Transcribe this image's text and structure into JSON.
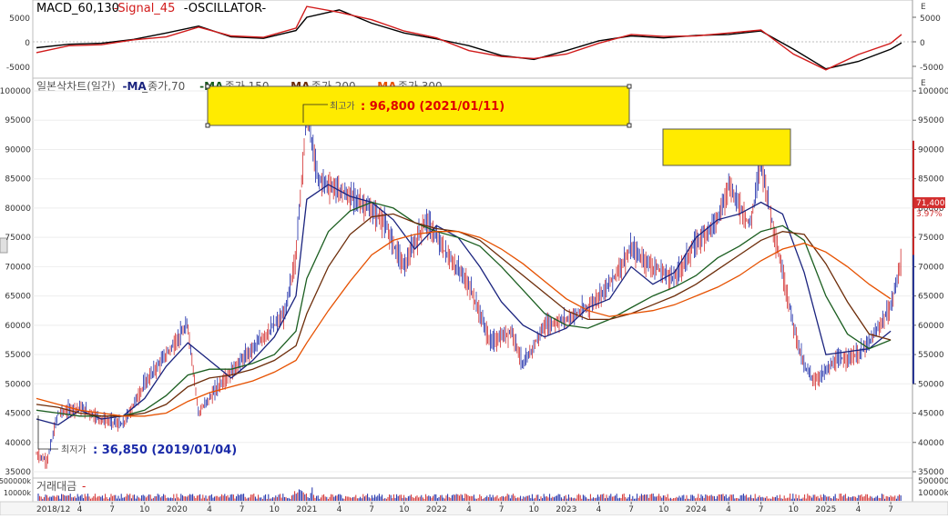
{
  "macd_panel": {
    "title_parts": [
      {
        "text": "MACD_60,130",
        "color": "#000000"
      },
      {
        "text": "-Signal_45",
        "color": "#d11a1a"
      },
      {
        "text": "-OSCILLATOR-",
        "color": "#000000"
      }
    ],
    "axis_ticks": [
      {
        "value": 5000,
        "label": "5000"
      },
      {
        "value": 0,
        "label": "0"
      },
      {
        "value": -5000,
        "label": "-5000"
      }
    ],
    "corner_label": "E"
  },
  "price_panel": {
    "title_parts": [
      {
        "text": "일본삭차트(일간)",
        "color": "#555555"
      },
      {
        "text": "-MA",
        "color": "#1a237e"
      },
      {
        "text": "_종가,70",
        "color": "#555555"
      },
      {
        "text": "-MA",
        "color": "#1b5e20"
      },
      {
        "text": "_종가,150",
        "color": "#555555"
      },
      {
        "text": "-MA",
        "color": "#6d2d0a"
      },
      {
        "text": "_종가,200",
        "color": "#555555"
      },
      {
        "text": "-MA",
        "color": "#e65100"
      },
      {
        "text": "_종가,300",
        "color": "#555555"
      },
      {
        "text": "-",
        "color": "#555555"
      }
    ],
    "y_ticks": [
      {
        "value": 100000,
        "label": "100000"
      },
      {
        "value": 95000,
        "label": "95000"
      },
      {
        "value": 90000,
        "label": "90000"
      },
      {
        "value": 85000,
        "label": "85000"
      },
      {
        "value": 80000,
        "label": "80000"
      },
      {
        "value": 75000,
        "label": "75000"
      },
      {
        "value": 70000,
        "label": "70000"
      },
      {
        "value": 65000,
        "label": "65000"
      },
      {
        "value": 60000,
        "label": "60000"
      },
      {
        "value": 55000,
        "label": "55000"
      },
      {
        "value": 50000,
        "label": "50000"
      },
      {
        "value": 45000,
        "label": "45000"
      },
      {
        "value": 40000,
        "label": "40000"
      },
      {
        "value": 35000,
        "label": "35000"
      }
    ],
    "high_annotation": {
      "prefix": "최고가",
      "text": ": 96,800 (2021/01/11)",
      "color": "#e00000"
    },
    "low_annotation": {
      "prefix": "최저가",
      "text": ": 36,850 (2019/01/04)",
      "color": "#1a2aa8"
    },
    "current_price_badge": {
      "price": "71,400",
      "change": "3.97%",
      "color": "#d32f2f"
    },
    "corner_label": "E"
  },
  "volume_panel": {
    "title": "거래대금",
    "axis_ticks": [
      "500000k",
      "10000k"
    ]
  },
  "x_axis_labels": [
    "2018/12",
    "4",
    "7",
    "10",
    "2020",
    "4",
    "7",
    "10",
    "2021",
    "4",
    "7",
    "10",
    "2022",
    "4",
    "7",
    "10",
    "2023",
    "4",
    "7",
    "10",
    "2024",
    "4",
    "7",
    "10",
    "2025",
    "4",
    "7"
  ],
  "chart_data": {
    "type": "line",
    "series": [
      {
        "name": "MA_종가,70",
        "color": "#1a237e",
        "x": [
          "2018-12",
          "2019-02",
          "2019-04",
          "2019-06",
          "2019-08",
          "2019-10",
          "2019-12",
          "2020-02",
          "2020-04",
          "2020-06",
          "2020-08",
          "2020-10",
          "2020-12",
          "2021-01",
          "2021-03",
          "2021-05",
          "2021-07",
          "2021-09",
          "2021-11",
          "2022-01",
          "2022-03",
          "2022-05",
          "2022-07",
          "2022-09",
          "2022-11",
          "2023-01",
          "2023-03",
          "2023-05",
          "2023-07",
          "2023-09",
          "2023-11",
          "2024-01",
          "2024-03",
          "2024-05",
          "2024-07",
          "2024-09",
          "2024-11",
          "2025-01",
          "2025-03",
          "2025-05",
          "2025-07"
        ],
        "values": [
          44000,
          43000,
          45500,
          44000,
          44500,
          47500,
          53000,
          57000,
          54000,
          51000,
          54000,
          58000,
          65000,
          81500,
          84000,
          82000,
          81000,
          78000,
          73000,
          77000,
          75000,
          70000,
          64000,
          60000,
          58000,
          59500,
          63000,
          64500,
          70000,
          67000,
          69000,
          75000,
          78000,
          79000,
          81000,
          79000,
          69000,
          55000,
          55500,
          56000,
          59000
        ]
      },
      {
        "name": "MA_종가,150",
        "color": "#1b5e20",
        "x": [
          "2018-12",
          "2019-02",
          "2019-04",
          "2019-06",
          "2019-08",
          "2019-10",
          "2019-12",
          "2020-02",
          "2020-04",
          "2020-06",
          "2020-08",
          "2020-10",
          "2020-12",
          "2021-01",
          "2021-03",
          "2021-05",
          "2021-07",
          "2021-09",
          "2021-11",
          "2022-01",
          "2022-03",
          "2022-05",
          "2022-07",
          "2022-09",
          "2022-11",
          "2023-01",
          "2023-03",
          "2023-05",
          "2023-07",
          "2023-09",
          "2023-11",
          "2024-01",
          "2024-03",
          "2024-05",
          "2024-07",
          "2024-09",
          "2024-11",
          "2025-01",
          "2025-03",
          "2025-05",
          "2025-07"
        ],
        "values": [
          45500,
          45000,
          44500,
          44500,
          44500,
          45500,
          48000,
          51500,
          52500,
          52500,
          53500,
          55000,
          59000,
          68000,
          76000,
          79500,
          81000,
          80000,
          77500,
          76000,
          75000,
          73500,
          70000,
          66000,
          62000,
          60000,
          59500,
          61000,
          63000,
          65000,
          66500,
          68500,
          71500,
          73500,
          76000,
          77000,
          74500,
          65000,
          58500,
          56000,
          57500
        ]
      },
      {
        "name": "MA_종가,200",
        "color": "#6d2d0a",
        "x": [
          "2018-12",
          "2019-02",
          "2019-04",
          "2019-06",
          "2019-08",
          "2019-10",
          "2019-12",
          "2020-02",
          "2020-04",
          "2020-06",
          "2020-08",
          "2020-10",
          "2020-12",
          "2021-01",
          "2021-03",
          "2021-05",
          "2021-07",
          "2021-09",
          "2021-11",
          "2022-01",
          "2022-03",
          "2022-05",
          "2022-07",
          "2022-09",
          "2022-11",
          "2023-01",
          "2023-03",
          "2023-05",
          "2023-07",
          "2023-09",
          "2023-11",
          "2024-01",
          "2024-03",
          "2024-05",
          "2024-07",
          "2024-09",
          "2024-11",
          "2025-01",
          "2025-03",
          "2025-05",
          "2025-07"
        ],
        "values": [
          46500,
          46000,
          45000,
          44500,
          44500,
          45000,
          46500,
          49500,
          51000,
          51500,
          52500,
          54000,
          56500,
          62000,
          70000,
          75500,
          78500,
          79000,
          77500,
          76500,
          76000,
          74500,
          71500,
          68500,
          65500,
          62500,
          61000,
          61000,
          62000,
          63500,
          65000,
          67000,
          69500,
          72000,
          74500,
          76000,
          75500,
          70500,
          64000,
          58500,
          57500
        ]
      },
      {
        "name": "MA_종가,300",
        "color": "#e65100",
        "x": [
          "2018-12",
          "2019-02",
          "2019-04",
          "2019-06",
          "2019-08",
          "2019-10",
          "2019-12",
          "2020-02",
          "2020-04",
          "2020-06",
          "2020-08",
          "2020-10",
          "2020-12",
          "2021-01",
          "2021-03",
          "2021-05",
          "2021-07",
          "2021-09",
          "2021-11",
          "2022-01",
          "2022-03",
          "2022-05",
          "2022-07",
          "2022-09",
          "2022-11",
          "2023-01",
          "2023-03",
          "2023-05",
          "2023-07",
          "2023-09",
          "2023-11",
          "2024-01",
          "2024-03",
          "2024-05",
          "2024-07",
          "2024-09",
          "2024-11",
          "2025-01",
          "2025-03",
          "2025-05",
          "2025-07"
        ],
        "values": [
          47500,
          46500,
          45500,
          45000,
          44500,
          44500,
          45000,
          47000,
          48500,
          49500,
          50500,
          52000,
          54000,
          57000,
          62500,
          67500,
          72000,
          74500,
          75500,
          76000,
          76000,
          75000,
          73000,
          70500,
          67500,
          64500,
          62500,
          61500,
          62000,
          62500,
          63500,
          65000,
          66500,
          68500,
          71000,
          73000,
          74000,
          72500,
          70000,
          67000,
          64500
        ]
      },
      {
        "name": "Close",
        "color": "#d32f2f",
        "x": [
          "2018-12",
          "2019-01",
          "2019-02",
          "2019-04",
          "2019-06",
          "2019-08",
          "2019-10",
          "2019-12",
          "2020-02",
          "2020-03",
          "2020-05",
          "2020-07",
          "2020-09",
          "2020-11",
          "2020-12",
          "2021-01",
          "2021-02",
          "2021-04",
          "2021-06",
          "2021-08",
          "2021-10",
          "2021-12",
          "2022-02",
          "2022-04",
          "2022-06",
          "2022-08",
          "2022-09",
          "2022-11",
          "2023-01",
          "2023-03",
          "2023-05",
          "2023-07",
          "2023-09",
          "2023-11",
          "2024-01",
          "2024-03",
          "2024-04",
          "2024-06",
          "2024-07",
          "2024-08",
          "2024-10",
          "2024-11",
          "2024-12",
          "2025-02",
          "2025-04",
          "2025-05",
          "2025-07",
          "2025-08"
        ],
        "values": [
          38000,
          36850,
          45000,
          46000,
          44000,
          43000,
          50000,
          55000,
          60000,
          45000,
          50000,
          54000,
          58000,
          62000,
          72000,
          96800,
          85000,
          83000,
          81000,
          78000,
          70000,
          78000,
          72000,
          67000,
          57000,
          59000,
          53000,
          60000,
          61000,
          63000,
          67000,
          73000,
          70000,
          68000,
          74000,
          78000,
          84000,
          77000,
          88000,
          78000,
          60000,
          53000,
          50500,
          54000,
          55000,
          57000,
          63000,
          71400
        ]
      },
      {
        "name": "MACD_60,130",
        "color": "#000000",
        "x": [
          "2018-12",
          "2019-03",
          "2019-06",
          "2019-09",
          "2019-12",
          "2020-03",
          "2020-06",
          "2020-09",
          "2020-12",
          "2021-01",
          "2021-04",
          "2021-07",
          "2021-10",
          "2022-01",
          "2022-04",
          "2022-07",
          "2022-10",
          "2023-01",
          "2023-04",
          "2023-07",
          "2023-10",
          "2024-01",
          "2024-04",
          "2024-07",
          "2024-10",
          "2025-01",
          "2025-04",
          "2025-07",
          "2025-08"
        ],
        "values": [
          -1200,
          -500,
          -300,
          500,
          1800,
          3200,
          1000,
          700,
          2300,
          5000,
          6500,
          3800,
          1800,
          600,
          -800,
          -2800,
          -3600,
          -1800,
          200,
          1200,
          800,
          1300,
          1500,
          2200,
          -1500,
          -5500,
          -4000,
          -1500,
          -200
        ]
      },
      {
        "name": "Signal_45",
        "color": "#d11a1a",
        "x": [
          "2018-12",
          "2019-03",
          "2019-06",
          "2019-09",
          "2019-12",
          "2020-03",
          "2020-06",
          "2020-09",
          "2020-12",
          "2021-01",
          "2021-04",
          "2021-07",
          "2021-10",
          "2022-01",
          "2022-04",
          "2022-07",
          "2022-10",
          "2023-01",
          "2023-04",
          "2023-07",
          "2023-10",
          "2024-01",
          "2024-04",
          "2024-07",
          "2024-10",
          "2025-01",
          "2025-04",
          "2025-07",
          "2025-08"
        ],
        "values": [
          -2200,
          -800,
          -600,
          400,
          1000,
          3000,
          1200,
          900,
          2800,
          7200,
          6000,
          4500,
          2200,
          800,
          -1800,
          -3000,
          -3400,
          -2500,
          -300,
          1500,
          1100,
          1200,
          1800,
          2400,
          -2500,
          -5700,
          -2600,
          -300,
          1500
        ]
      }
    ],
    "ylim": [
      34000,
      101000
    ],
    "macd_ylim": [
      -6000,
      8000
    ]
  }
}
